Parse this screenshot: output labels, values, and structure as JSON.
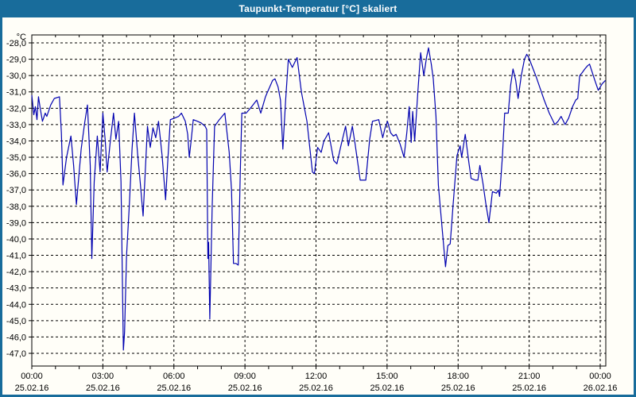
{
  "window": {
    "title": "Taupunkt-Temperatur [°C] skaliert"
  },
  "colors": {
    "frame": "#186c9b",
    "title_text": "#ffffff",
    "line": "#0202b0",
    "grid": "#000000",
    "background": "#fffef8"
  },
  "chart_data": {
    "type": "line",
    "title": "Taupunkt-Temperatur [°C] skaliert",
    "y_unit": "°C",
    "y_max": -28.0,
    "y_min": -47.0,
    "y_step": 1.0,
    "grid": "dashed",
    "legend": "none",
    "y_tick_labels": [
      "-28,0",
      "-29,0",
      "-30,0",
      "-31,0",
      "-32,0",
      "-33,0",
      "-34,0",
      "-35,0",
      "-36,0",
      "-37,0",
      "-38,0",
      "-39,0",
      "-40,0",
      "-41,0",
      "-42,0",
      "-43,0",
      "-44,0",
      "-45,0",
      "-46,0",
      "-47,0"
    ],
    "x_ticks": [
      {
        "time": "00:00",
        "date": "25.02.16"
      },
      {
        "time": "03:00",
        "date": "25.02.16"
      },
      {
        "time": "06:00",
        "date": "25.02.16"
      },
      {
        "time": "09:00",
        "date": "25.02.16"
      },
      {
        "time": "12:00",
        "date": "25.02.16"
      },
      {
        "time": "15:00",
        "date": "25.02.16"
      },
      {
        "time": "18:00",
        "date": "25.02.16"
      },
      {
        "time": "21:00",
        "date": "25.02.16"
      },
      {
        "time": "00:00",
        "date": "26.02.16"
      }
    ],
    "x_minor_tick_hours": 1,
    "x_range_hours": 24,
    "series": [
      {
        "name": "Taupunkt-Temperatur",
        "points_format": "[minutes_since_00:00, degC]",
        "points": [
          [
            0,
            -31.2
          ],
          [
            5,
            -32.4
          ],
          [
            9,
            -31.9
          ],
          [
            13,
            -32.7
          ],
          [
            17,
            -31.3
          ],
          [
            22,
            -32.1
          ],
          [
            27,
            -32.8
          ],
          [
            34,
            -32.3
          ],
          [
            38,
            -32.5
          ],
          [
            48,
            -31.8
          ],
          [
            57,
            -31.4
          ],
          [
            70,
            -31.3
          ],
          [
            75,
            -33.5
          ],
          [
            79,
            -36.7
          ],
          [
            88,
            -35.0
          ],
          [
            99,
            -33.7
          ],
          [
            106,
            -35.5
          ],
          [
            113,
            -37.9
          ],
          [
            125,
            -34.5
          ],
          [
            134,
            -32.9
          ],
          [
            141,
            -31.8
          ],
          [
            148,
            -35.5
          ],
          [
            152,
            -41.2
          ],
          [
            158,
            -36.5
          ],
          [
            166,
            -33.7
          ],
          [
            173,
            -35.9
          ],
          [
            180,
            -32.3
          ],
          [
            186,
            -34.0
          ],
          [
            191,
            -35.9
          ],
          [
            199,
            -34.0
          ],
          [
            207,
            -32.3
          ],
          [
            213,
            -33.9
          ],
          [
            220,
            -32.8
          ],
          [
            226,
            -36.5
          ],
          [
            232,
            -46.8
          ],
          [
            235,
            -45.7
          ],
          [
            240,
            -41.0
          ],
          [
            247,
            -38.0
          ],
          [
            254,
            -34.5
          ],
          [
            260,
            -32.3
          ],
          [
            268,
            -34.8
          ],
          [
            275,
            -36.6
          ],
          [
            282,
            -38.6
          ],
          [
            293,
            -33.1
          ],
          [
            300,
            -34.4
          ],
          [
            307,
            -33.2
          ],
          [
            314,
            -33.8
          ],
          [
            321,
            -32.8
          ],
          [
            330,
            -34.9
          ],
          [
            339,
            -37.6
          ],
          [
            345,
            -35.0
          ],
          [
            351,
            -32.7
          ],
          [
            362,
            -32.6
          ],
          [
            372,
            -32.5
          ],
          [
            379,
            -32.3
          ],
          [
            389,
            -32.8
          ],
          [
            395,
            -33.6
          ],
          [
            399,
            -35.0
          ],
          [
            404,
            -33.9
          ],
          [
            409,
            -32.7
          ],
          [
            420,
            -32.8
          ],
          [
            429,
            -32.9
          ],
          [
            439,
            -33.1
          ],
          [
            443,
            -33.3
          ],
          [
            446,
            -41.2
          ],
          [
            448,
            -40.2
          ],
          [
            451,
            -44.9
          ],
          [
            457,
            -38.0
          ],
          [
            463,
            -33.1
          ],
          [
            475,
            -32.7
          ],
          [
            489,
            -32.3
          ],
          [
            500,
            -34.7
          ],
          [
            506,
            -37.0
          ],
          [
            511,
            -41.5
          ],
          [
            517,
            -41.5
          ],
          [
            523,
            -41.6
          ],
          [
            528,
            -36.0
          ],
          [
            532,
            -32.3
          ],
          [
            543,
            -32.3
          ],
          [
            557,
            -31.9
          ],
          [
            570,
            -31.5
          ],
          [
            580,
            -32.3
          ],
          [
            592,
            -31.3
          ],
          [
            610,
            -30.3
          ],
          [
            616,
            -30.2
          ],
          [
            624,
            -30.7
          ],
          [
            630,
            -31.5
          ],
          [
            636,
            -34.5
          ],
          [
            643,
            -31.5
          ],
          [
            650,
            -29.0
          ],
          [
            660,
            -29.5
          ],
          [
            672,
            -28.9
          ],
          [
            683,
            -31.0
          ],
          [
            697,
            -32.8
          ],
          [
            711,
            -35.9
          ],
          [
            716,
            -36.0
          ],
          [
            724,
            -34.4
          ],
          [
            733,
            -34.7
          ],
          [
            740,
            -34.0
          ],
          [
            752,
            -33.5
          ],
          [
            765,
            -35.2
          ],
          [
            773,
            -35.4
          ],
          [
            783,
            -34.3
          ],
          [
            795,
            -33.1
          ],
          [
            802,
            -34.3
          ],
          [
            812,
            -33.1
          ],
          [
            819,
            -34.2
          ],
          [
            832,
            -36.4
          ],
          [
            846,
            -36.4
          ],
          [
            856,
            -33.9
          ],
          [
            863,
            -32.8
          ],
          [
            879,
            -32.7
          ],
          [
            889,
            -33.8
          ],
          [
            895,
            -33.2
          ],
          [
            901,
            -32.8
          ],
          [
            909,
            -33.5
          ],
          [
            916,
            -33.7
          ],
          [
            923,
            -33.6
          ],
          [
            933,
            -34.2
          ],
          [
            943,
            -35.0
          ],
          [
            950,
            -33.5
          ],
          [
            956,
            -31.9
          ],
          [
            961,
            -34.1
          ],
          [
            965,
            -32.2
          ],
          [
            970,
            -34.0
          ],
          [
            978,
            -31.0
          ],
          [
            985,
            -28.6
          ],
          [
            993,
            -30.0
          ],
          [
            1000,
            -28.9
          ],
          [
            1005,
            -28.3
          ],
          [
            1012,
            -29.3
          ],
          [
            1017,
            -30.2
          ],
          [
            1024,
            -32.5
          ],
          [
            1030,
            -36.7
          ],
          [
            1040,
            -39.5
          ],
          [
            1048,
            -41.7
          ],
          [
            1054,
            -40.4
          ],
          [
            1060,
            -40.3
          ],
          [
            1067,
            -38.0
          ],
          [
            1077,
            -34.9
          ],
          [
            1085,
            -34.3
          ],
          [
            1089,
            -35.0
          ],
          [
            1098,
            -33.6
          ],
          [
            1107,
            -35.3
          ],
          [
            1113,
            -36.3
          ],
          [
            1124,
            -36.4
          ],
          [
            1130,
            -36.4
          ],
          [
            1135,
            -35.5
          ],
          [
            1143,
            -36.6
          ],
          [
            1150,
            -37.8
          ],
          [
            1158,
            -39.0
          ],
          [
            1167,
            -37.1
          ],
          [
            1177,
            -37.2
          ],
          [
            1182,
            -37.0
          ],
          [
            1185,
            -37.4
          ],
          [
            1192,
            -35.0
          ],
          [
            1198,
            -32.3
          ],
          [
            1207,
            -32.3
          ],
          [
            1213,
            -30.6
          ],
          [
            1219,
            -29.6
          ],
          [
            1226,
            -30.3
          ],
          [
            1232,
            -31.4
          ],
          [
            1240,
            -30.0
          ],
          [
            1248,
            -29.0
          ],
          [
            1254,
            -28.7
          ],
          [
            1259,
            -28.9
          ],
          [
            1270,
            -29.6
          ],
          [
            1278,
            -30.1
          ],
          [
            1288,
            -30.8
          ],
          [
            1298,
            -31.5
          ],
          [
            1311,
            -32.3
          ],
          [
            1325,
            -33.0
          ],
          [
            1333,
            -32.8
          ],
          [
            1341,
            -32.5
          ],
          [
            1351,
            -33.0
          ],
          [
            1360,
            -32.6
          ],
          [
            1370,
            -31.9
          ],
          [
            1378,
            -31.5
          ],
          [
            1383,
            -31.4
          ],
          [
            1388,
            -30.0
          ],
          [
            1395,
            -29.8
          ],
          [
            1401,
            -29.6
          ],
          [
            1408,
            -29.4
          ],
          [
            1413,
            -29.3
          ],
          [
            1425,
            -30.2
          ],
          [
            1435,
            -30.9
          ],
          [
            1445,
            -30.5
          ],
          [
            1453,
            -30.3
          ]
        ]
      }
    ]
  }
}
